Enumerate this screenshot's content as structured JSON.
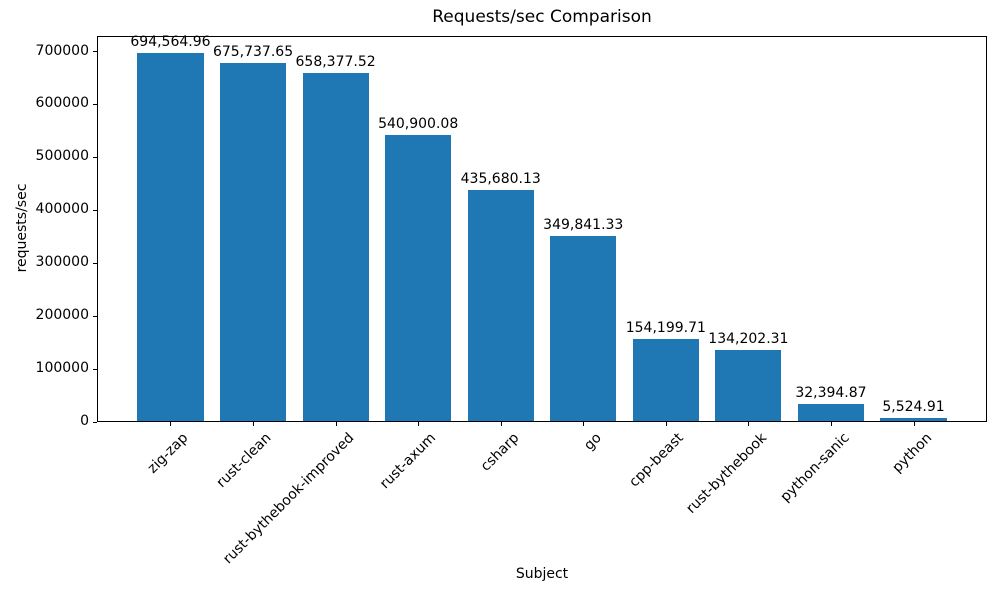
{
  "chart_data": {
    "type": "bar",
    "title": "Requests/sec Comparison",
    "xlabel": "Subject",
    "ylabel": "requests/sec",
    "categories": [
      "zig-zap",
      "rust-clean",
      "rust-bythebook-improved",
      "rust-axum",
      "csharp",
      "go",
      "cpp-beast",
      "rust-bythebook",
      "python-sanic",
      "python"
    ],
    "values": [
      694564.96,
      675737.65,
      658377.52,
      540900.08,
      435680.13,
      349841.33,
      154199.71,
      134202.31,
      32394.87,
      5524.91
    ],
    "value_labels": [
      "694,564.96",
      "675,737.65",
      "658,377.52",
      "540,900.08",
      "435,680.13",
      "349,841.33",
      "154,199.71",
      "134,202.31",
      "32,394.87",
      "5,524.91"
    ],
    "yticks": [
      0,
      100000,
      200000,
      300000,
      400000,
      500000,
      600000,
      700000
    ],
    "ylim": [
      0,
      729293
    ],
    "bar_color": "#1f77b4",
    "text_color": "#000000",
    "background_color": "#ffffff",
    "grid": false,
    "legend": null,
    "x_tick_rotation_deg": 45
  }
}
